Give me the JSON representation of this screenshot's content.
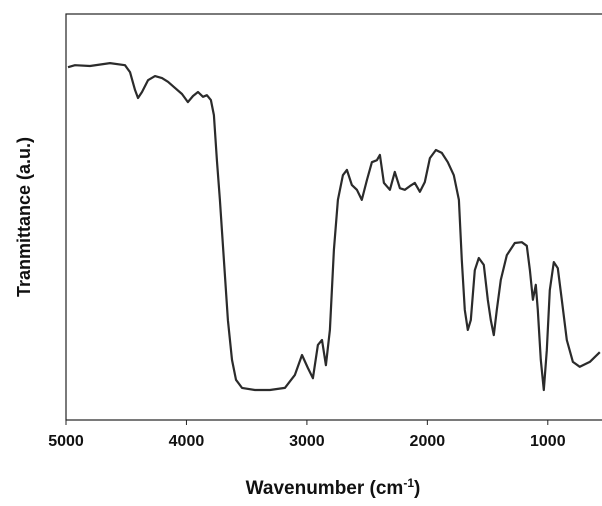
{
  "chart_data": {
    "type": "line",
    "y_label": "Tranmittance (a.u.)",
    "x_label": {
      "text": "Wavenumber (cm",
      "superscript": "-1",
      "suffix": ")"
    },
    "color": "#2b2b2b",
    "xlim": [
      5000,
      550
    ],
    "ylim": [
      0,
      100
    ],
    "xticks": [
      5000,
      4000,
      3000,
      2000,
      1000
    ],
    "x": [
      4983,
      4925,
      4801,
      4635,
      4510,
      4469,
      4427,
      4402,
      4369,
      4319,
      4261,
      4203,
      4153,
      4095,
      4037,
      3988,
      3946,
      3904,
      3863,
      3830,
      3797,
      3772,
      3747,
      3722,
      3689,
      3656,
      3622,
      3589,
      3539,
      3431,
      3307,
      3183,
      3100,
      3041,
      2992,
      2950,
      2909,
      2875,
      2842,
      2809,
      2776,
      2743,
      2701,
      2668,
      2627,
      2585,
      2544,
      2502,
      2460,
      2419,
      2394,
      2361,
      2311,
      2270,
      2228,
      2187,
      2145,
      2104,
      2062,
      2021,
      1979,
      1929,
      1880,
      1830,
      1780,
      1738,
      1714,
      1689,
      1664,
      1639,
      1606,
      1573,
      1531,
      1498,
      1473,
      1448,
      1423,
      1390,
      1340,
      1274,
      1216,
      1174,
      1149,
      1124,
      1100,
      1083,
      1058,
      1033,
      1008,
      983,
      950,
      917,
      884,
      842,
      792,
      734,
      651,
      568
    ],
    "values": [
      86.9,
      87.4,
      87.2,
      87.9,
      87.4,
      85.7,
      81.3,
      79.3,
      80.8,
      83.7,
      84.7,
      84.2,
      83.3,
      81.8,
      80.3,
      78.3,
      79.8,
      80.8,
      79.6,
      80.0,
      78.8,
      75.1,
      64.0,
      54.2,
      39.4,
      24.6,
      14.8,
      9.9,
      7.9,
      7.4,
      7.4,
      7.9,
      11.1,
      16.0,
      12.8,
      10.3,
      18.5,
      19.7,
      13.5,
      22.2,
      41.9,
      54.2,
      60.3,
      61.6,
      57.9,
      56.7,
      54.2,
      59.1,
      63.5,
      64.0,
      65.3,
      58.4,
      56.7,
      61.1,
      57.1,
      56.7,
      57.6,
      58.4,
      56.2,
      58.6,
      64.5,
      66.5,
      65.8,
      63.5,
      60.3,
      54.2,
      39.4,
      27.1,
      22.2,
      24.6,
      36.9,
      39.9,
      38.2,
      29.6,
      24.6,
      20.9,
      27.1,
      34.5,
      40.6,
      43.6,
      43.8,
      42.9,
      36.9,
      29.6,
      33.3,
      27.1,
      14.8,
      7.4,
      17.2,
      32.0,
      38.9,
      37.4,
      29.6,
      19.7,
      14.3,
      13.1,
      14.3,
      16.7
    ]
  }
}
